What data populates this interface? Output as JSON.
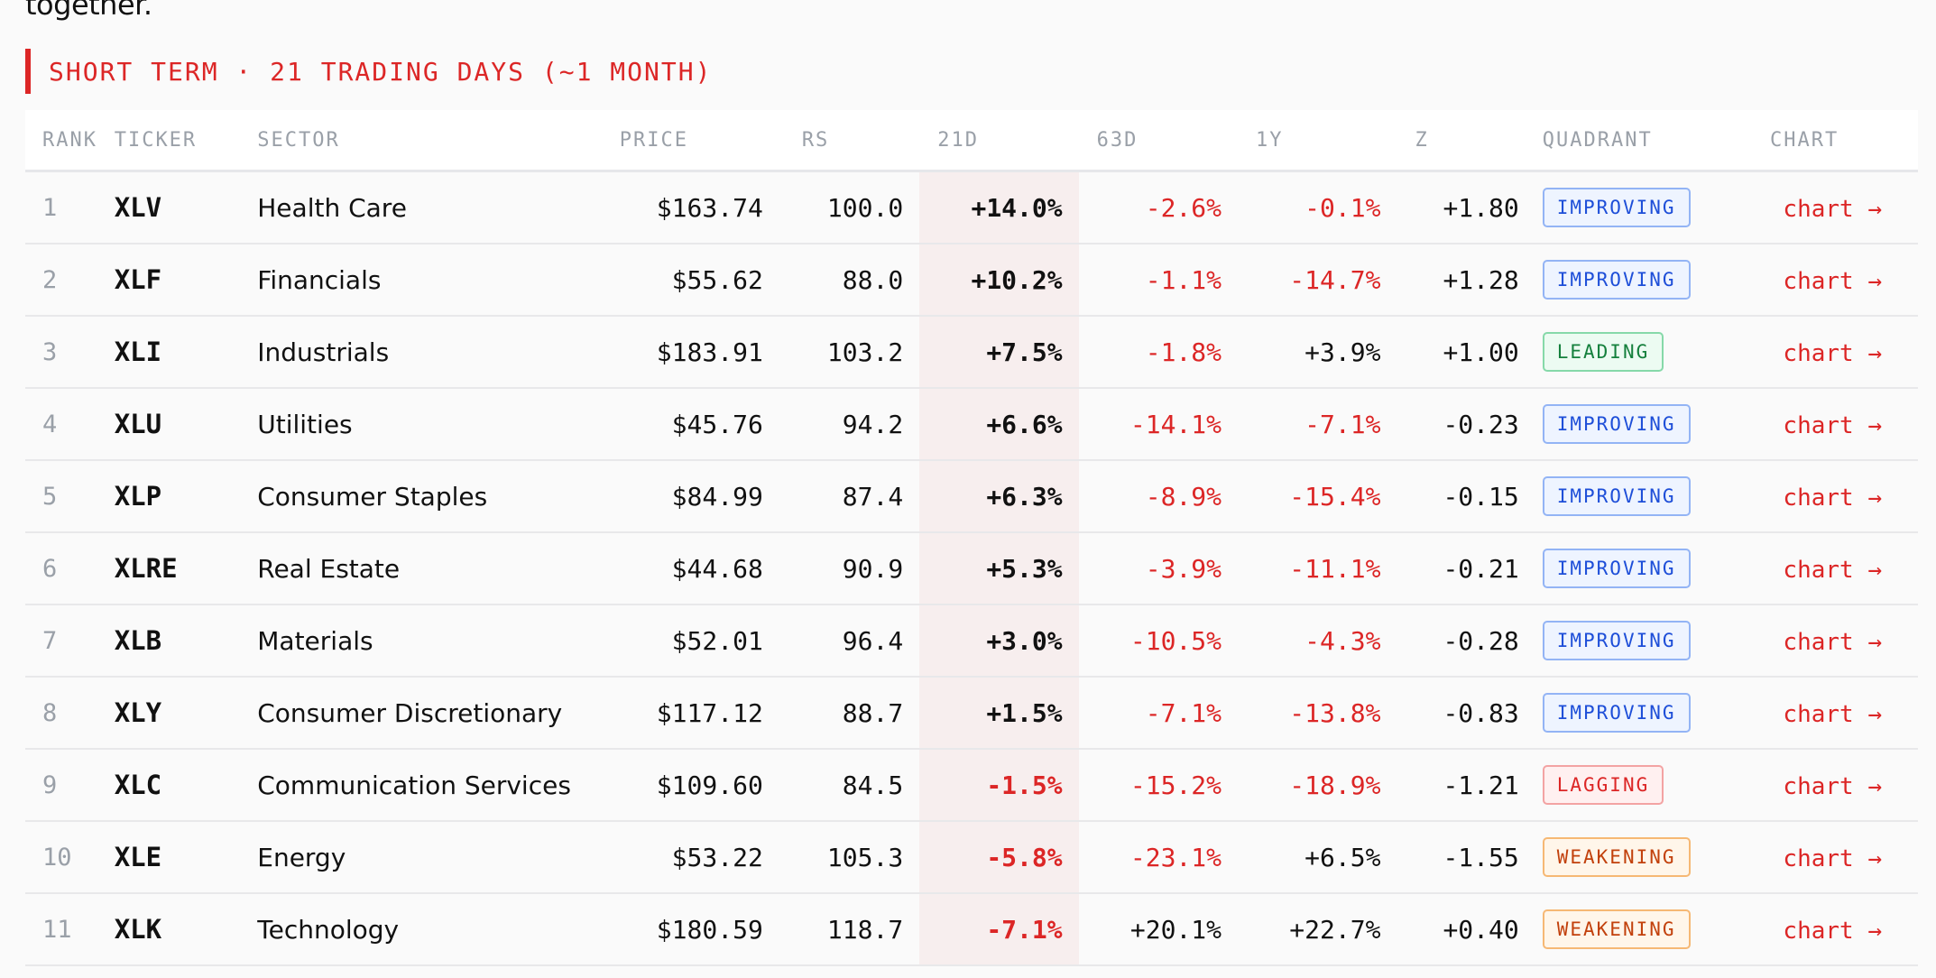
{
  "top_fragment": "together.",
  "section": {
    "title": "SHORT TERM · 21 TRADING DAYS (~1 MONTH)"
  },
  "colors": {
    "accent": "#dc2626",
    "positive": "#111111",
    "negative": "#dc2626",
    "improving": "#1d4ed8",
    "leading": "#15803d",
    "lagging": "#dc2626",
    "weakening": "#c2410c"
  },
  "table": {
    "headers": [
      "RANK",
      "TICKER",
      "SECTOR",
      "PRICE",
      "RS",
      "21D",
      "63D",
      "1Y",
      "Z",
      "QUADRANT",
      "CHART"
    ],
    "rows": [
      {
        "rank": "1",
        "ticker": "XLV",
        "sector": "Health Care",
        "price": "$163.74",
        "rs": "100.0",
        "d21": "+14.0%",
        "d63": "-2.6%",
        "y1": "-0.1%",
        "z": "+1.80",
        "quadrant": "IMPROVING",
        "chart": "chart →"
      },
      {
        "rank": "2",
        "ticker": "XLF",
        "sector": "Financials",
        "price": "$55.62",
        "rs": "88.0",
        "d21": "+10.2%",
        "d63": "-1.1%",
        "y1": "-14.7%",
        "z": "+1.28",
        "quadrant": "IMPROVING",
        "chart": "chart →"
      },
      {
        "rank": "3",
        "ticker": "XLI",
        "sector": "Industrials",
        "price": "$183.91",
        "rs": "103.2",
        "d21": "+7.5%",
        "d63": "-1.8%",
        "y1": "+3.9%",
        "z": "+1.00",
        "quadrant": "LEADING",
        "chart": "chart →"
      },
      {
        "rank": "4",
        "ticker": "XLU",
        "sector": "Utilities",
        "price": "$45.76",
        "rs": "94.2",
        "d21": "+6.6%",
        "d63": "-14.1%",
        "y1": "-7.1%",
        "z": "-0.23",
        "quadrant": "IMPROVING",
        "chart": "chart →"
      },
      {
        "rank": "5",
        "ticker": "XLP",
        "sector": "Consumer Staples",
        "price": "$84.99",
        "rs": "87.4",
        "d21": "+6.3%",
        "d63": "-8.9%",
        "y1": "-15.4%",
        "z": "-0.15",
        "quadrant": "IMPROVING",
        "chart": "chart →"
      },
      {
        "rank": "6",
        "ticker": "XLRE",
        "sector": "Real Estate",
        "price": "$44.68",
        "rs": "90.9",
        "d21": "+5.3%",
        "d63": "-3.9%",
        "y1": "-11.1%",
        "z": "-0.21",
        "quadrant": "IMPROVING",
        "chart": "chart →"
      },
      {
        "rank": "7",
        "ticker": "XLB",
        "sector": "Materials",
        "price": "$52.01",
        "rs": "96.4",
        "d21": "+3.0%",
        "d63": "-10.5%",
        "y1": "-4.3%",
        "z": "-0.28",
        "quadrant": "IMPROVING",
        "chart": "chart →"
      },
      {
        "rank": "8",
        "ticker": "XLY",
        "sector": "Consumer Discretionary",
        "price": "$117.12",
        "rs": "88.7",
        "d21": "+1.5%",
        "d63": "-7.1%",
        "y1": "-13.8%",
        "z": "-0.83",
        "quadrant": "IMPROVING",
        "chart": "chart →"
      },
      {
        "rank": "9",
        "ticker": "XLC",
        "sector": "Communication Services",
        "price": "$109.60",
        "rs": "84.5",
        "d21": "-1.5%",
        "d63": "-15.2%",
        "y1": "-18.9%",
        "z": "-1.21",
        "quadrant": "LAGGING",
        "chart": "chart →"
      },
      {
        "rank": "10",
        "ticker": "XLE",
        "sector": "Energy",
        "price": "$53.22",
        "rs": "105.3",
        "d21": "-5.8%",
        "d63": "-23.1%",
        "y1": "+6.5%",
        "z": "-1.55",
        "quadrant": "WEAKENING",
        "chart": "chart →"
      },
      {
        "rank": "11",
        "ticker": "XLK",
        "sector": "Technology",
        "price": "$180.59",
        "rs": "118.7",
        "d21": "-7.1%",
        "d63": "+20.1%",
        "y1": "+22.7%",
        "z": "+0.40",
        "quadrant": "WEAKENING",
        "chart": "chart →"
      }
    ]
  }
}
